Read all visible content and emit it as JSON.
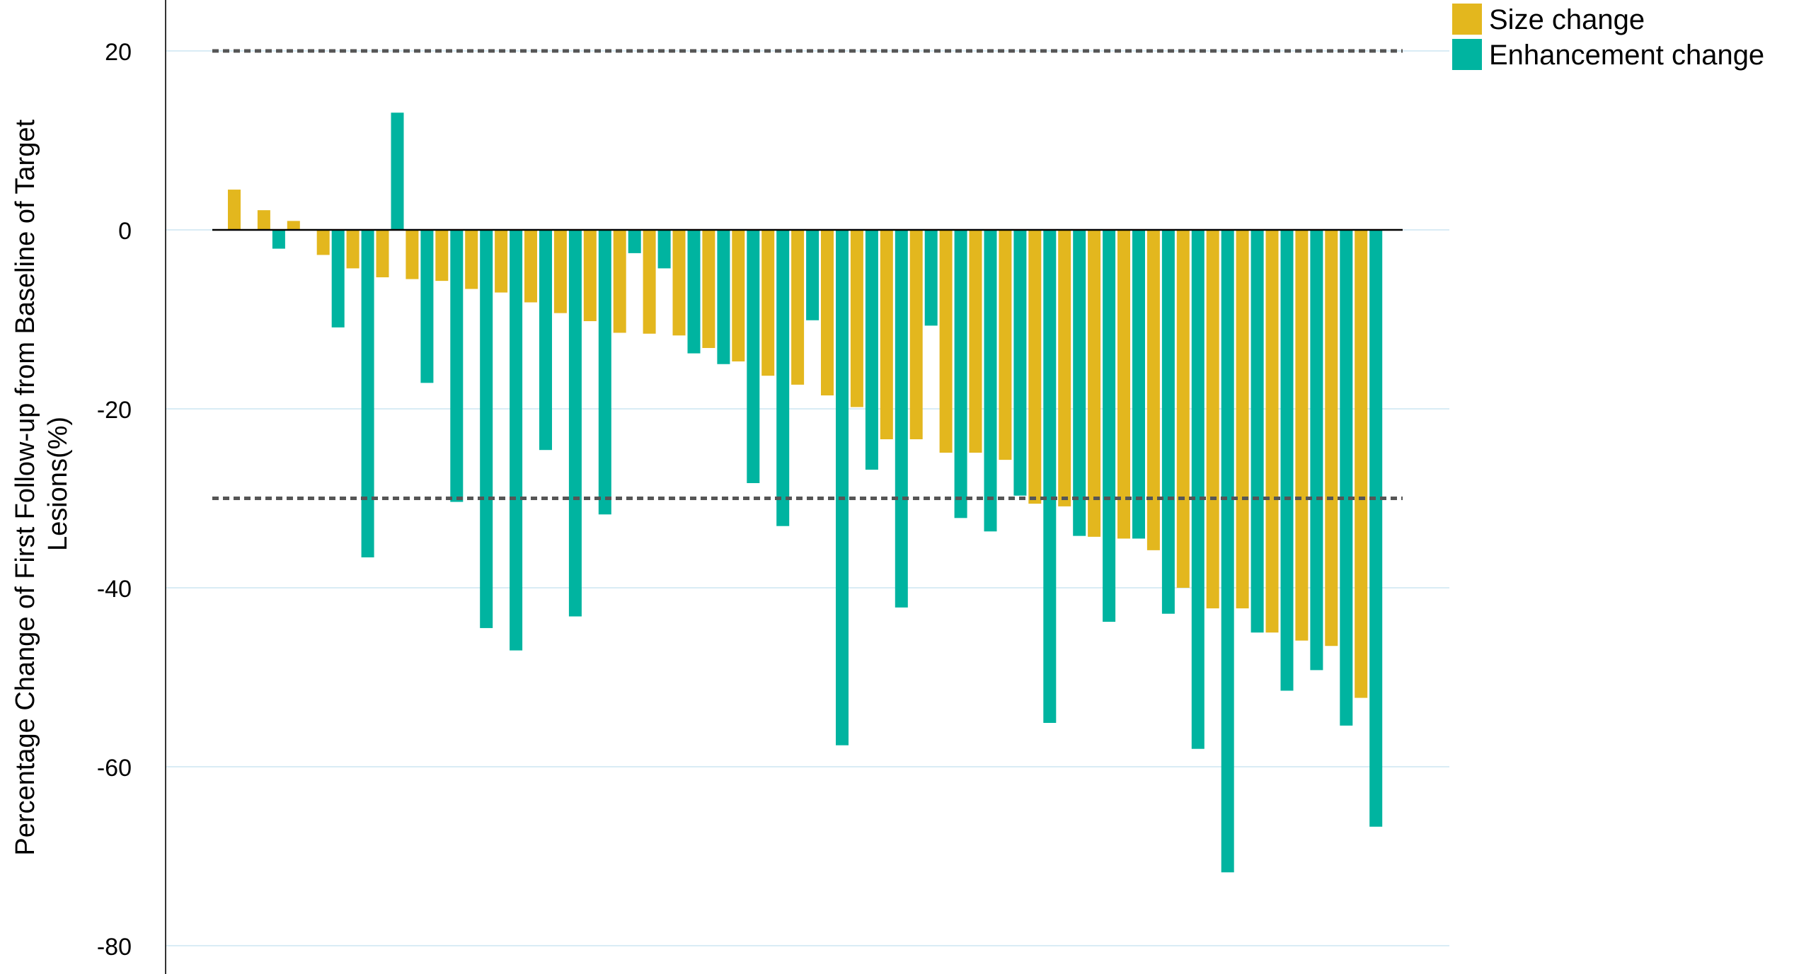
{
  "chart_data": {
    "type": "bar",
    "ylabel": "Percentage Change of First Follow-up from Baseline of Target Lesions(%)",
    "ylabel_lines": [
      "Percentage Change of First Follow-up from Baseline of Target",
      "Lesions(%)"
    ],
    "ylim": [
      -80,
      25
    ],
    "yticks": [
      20,
      0,
      -20,
      -40,
      -60,
      -80
    ],
    "grid": "horizontal",
    "legend_position": "top-right",
    "reference_lines": [
      20,
      -30
    ],
    "series": [
      {
        "name": "Size change",
        "color": "#E3B71E",
        "values": [
          4.5,
          2.2,
          1.0,
          -2.8,
          -4.3,
          -5.3,
          -5.5,
          -5.7,
          -6.6,
          -7.0,
          -8.1,
          -9.3,
          -10.2,
          -11.5,
          -11.6,
          -11.8,
          -13.2,
          -14.7,
          -16.3,
          -17.3,
          -18.5,
          -19.8,
          -23.4,
          -23.4,
          -24.9,
          -24.9,
          -25.7,
          -30.6,
          -30.9,
          -34.3,
          -34.5,
          -35.8,
          -40.0,
          -42.3,
          -42.3,
          -45.0,
          -45.9,
          -46.5,
          -52.3
        ]
      },
      {
        "name": "Enhancement change",
        "color": "#00B4A0",
        "values": [
          0,
          -2.1,
          0,
          -10.9,
          -36.6,
          13.1,
          -17.1,
          -30.4,
          -44.5,
          -47.0,
          -24.6,
          -43.2,
          -31.8,
          -2.6,
          -4.3,
          -13.8,
          -15.0,
          -28.3,
          -33.1,
          -10.1,
          -57.6,
          -26.8,
          -42.2,
          -10.7,
          -32.2,
          -33.7,
          -29.7,
          -55.1,
          -34.2,
          -43.8,
          -34.5,
          -42.9,
          -58.0,
          -71.8,
          -45.0,
          -51.5,
          -49.2,
          -55.4,
          -66.7
        ]
      }
    ]
  }
}
